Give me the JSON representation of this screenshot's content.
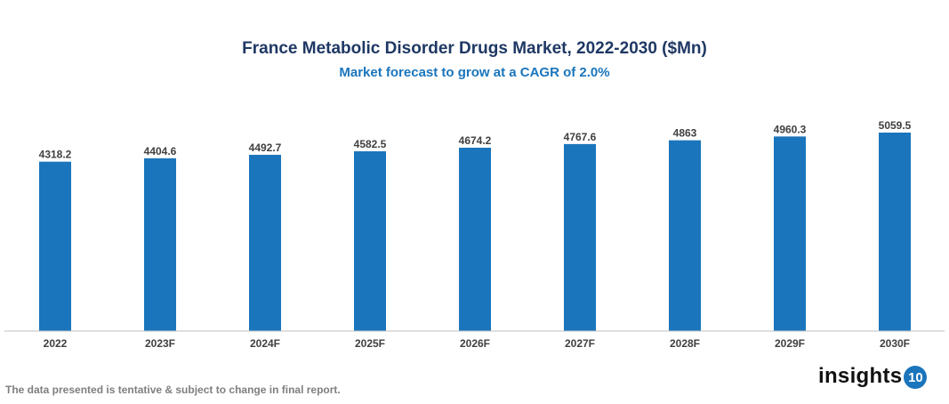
{
  "chart_data": {
    "type": "bar",
    "title": "France Metabolic Disorder Drugs Market, 2022-2030 ($Mn)",
    "subtitle": "Market forecast to grow at a CAGR of 2.0%",
    "categories": [
      "2022",
      "2023F",
      "2024F",
      "2025F",
      "2026F",
      "2027F",
      "2028F",
      "2029F",
      "2030F"
    ],
    "values": [
      4318.2,
      4404.6,
      4492.7,
      4582.5,
      4674.2,
      4767.6,
      4863,
      4960.3,
      5059.5
    ],
    "value_labels": [
      "4318.2",
      "4404.6",
      "4492.7",
      "4582.5",
      "4674.2",
      "4767.6",
      "4863",
      "4960.3",
      "5059.5"
    ],
    "xlabel": "",
    "ylabel": "",
    "ylim": [
      0,
      5059.5
    ],
    "grid": false,
    "bar_color": "#1a75bc"
  },
  "footer": "The data presented is tentative & subject to change in final report.",
  "logo": {
    "text": "insights",
    "badge": "10"
  }
}
